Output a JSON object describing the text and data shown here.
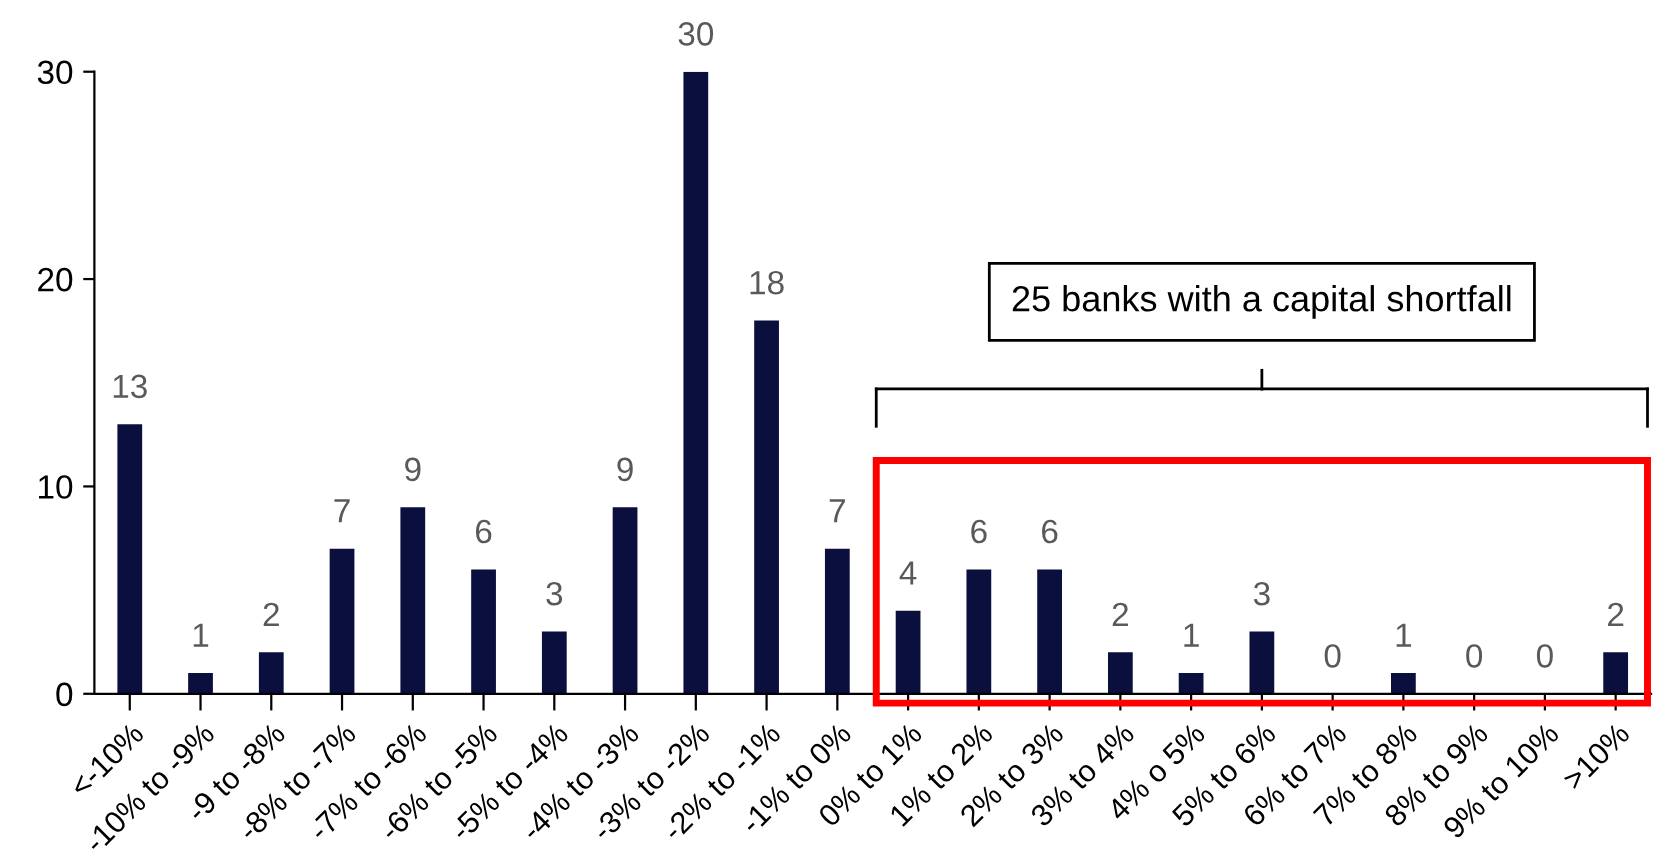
{
  "chart_data": {
    "type": "bar",
    "categories": [
      "<-10%",
      "-10% to -9%",
      "-9 to -8%",
      "-8% to -7%",
      "-7% to -6%",
      "-6% to -5%",
      "-5% to -4%",
      "-4% to -3%",
      "-3% to -2%",
      "-2% to -1%",
      "-1% to 0%",
      "0% to 1%",
      "1% to 2%",
      "2% to 3%",
      "3% to 4%",
      "4% o 5%",
      "5% to 6%",
      "6% to 7%",
      "7% to 8%",
      "8% to 9%",
      "9% to 10%",
      ">10%"
    ],
    "values": [
      13,
      1,
      2,
      7,
      9,
      6,
      3,
      9,
      30,
      18,
      7,
      4,
      6,
      6,
      2,
      1,
      3,
      0,
      1,
      0,
      0,
      2
    ],
    "color": "#0a0f3d",
    "ylim": [
      0,
      30
    ],
    "yticks": [
      0,
      10,
      20,
      30
    ],
    "data_labels": true,
    "grid": false,
    "legend": false,
    "annotations": [
      "25 banks with a capital shortfall"
    ]
  }
}
